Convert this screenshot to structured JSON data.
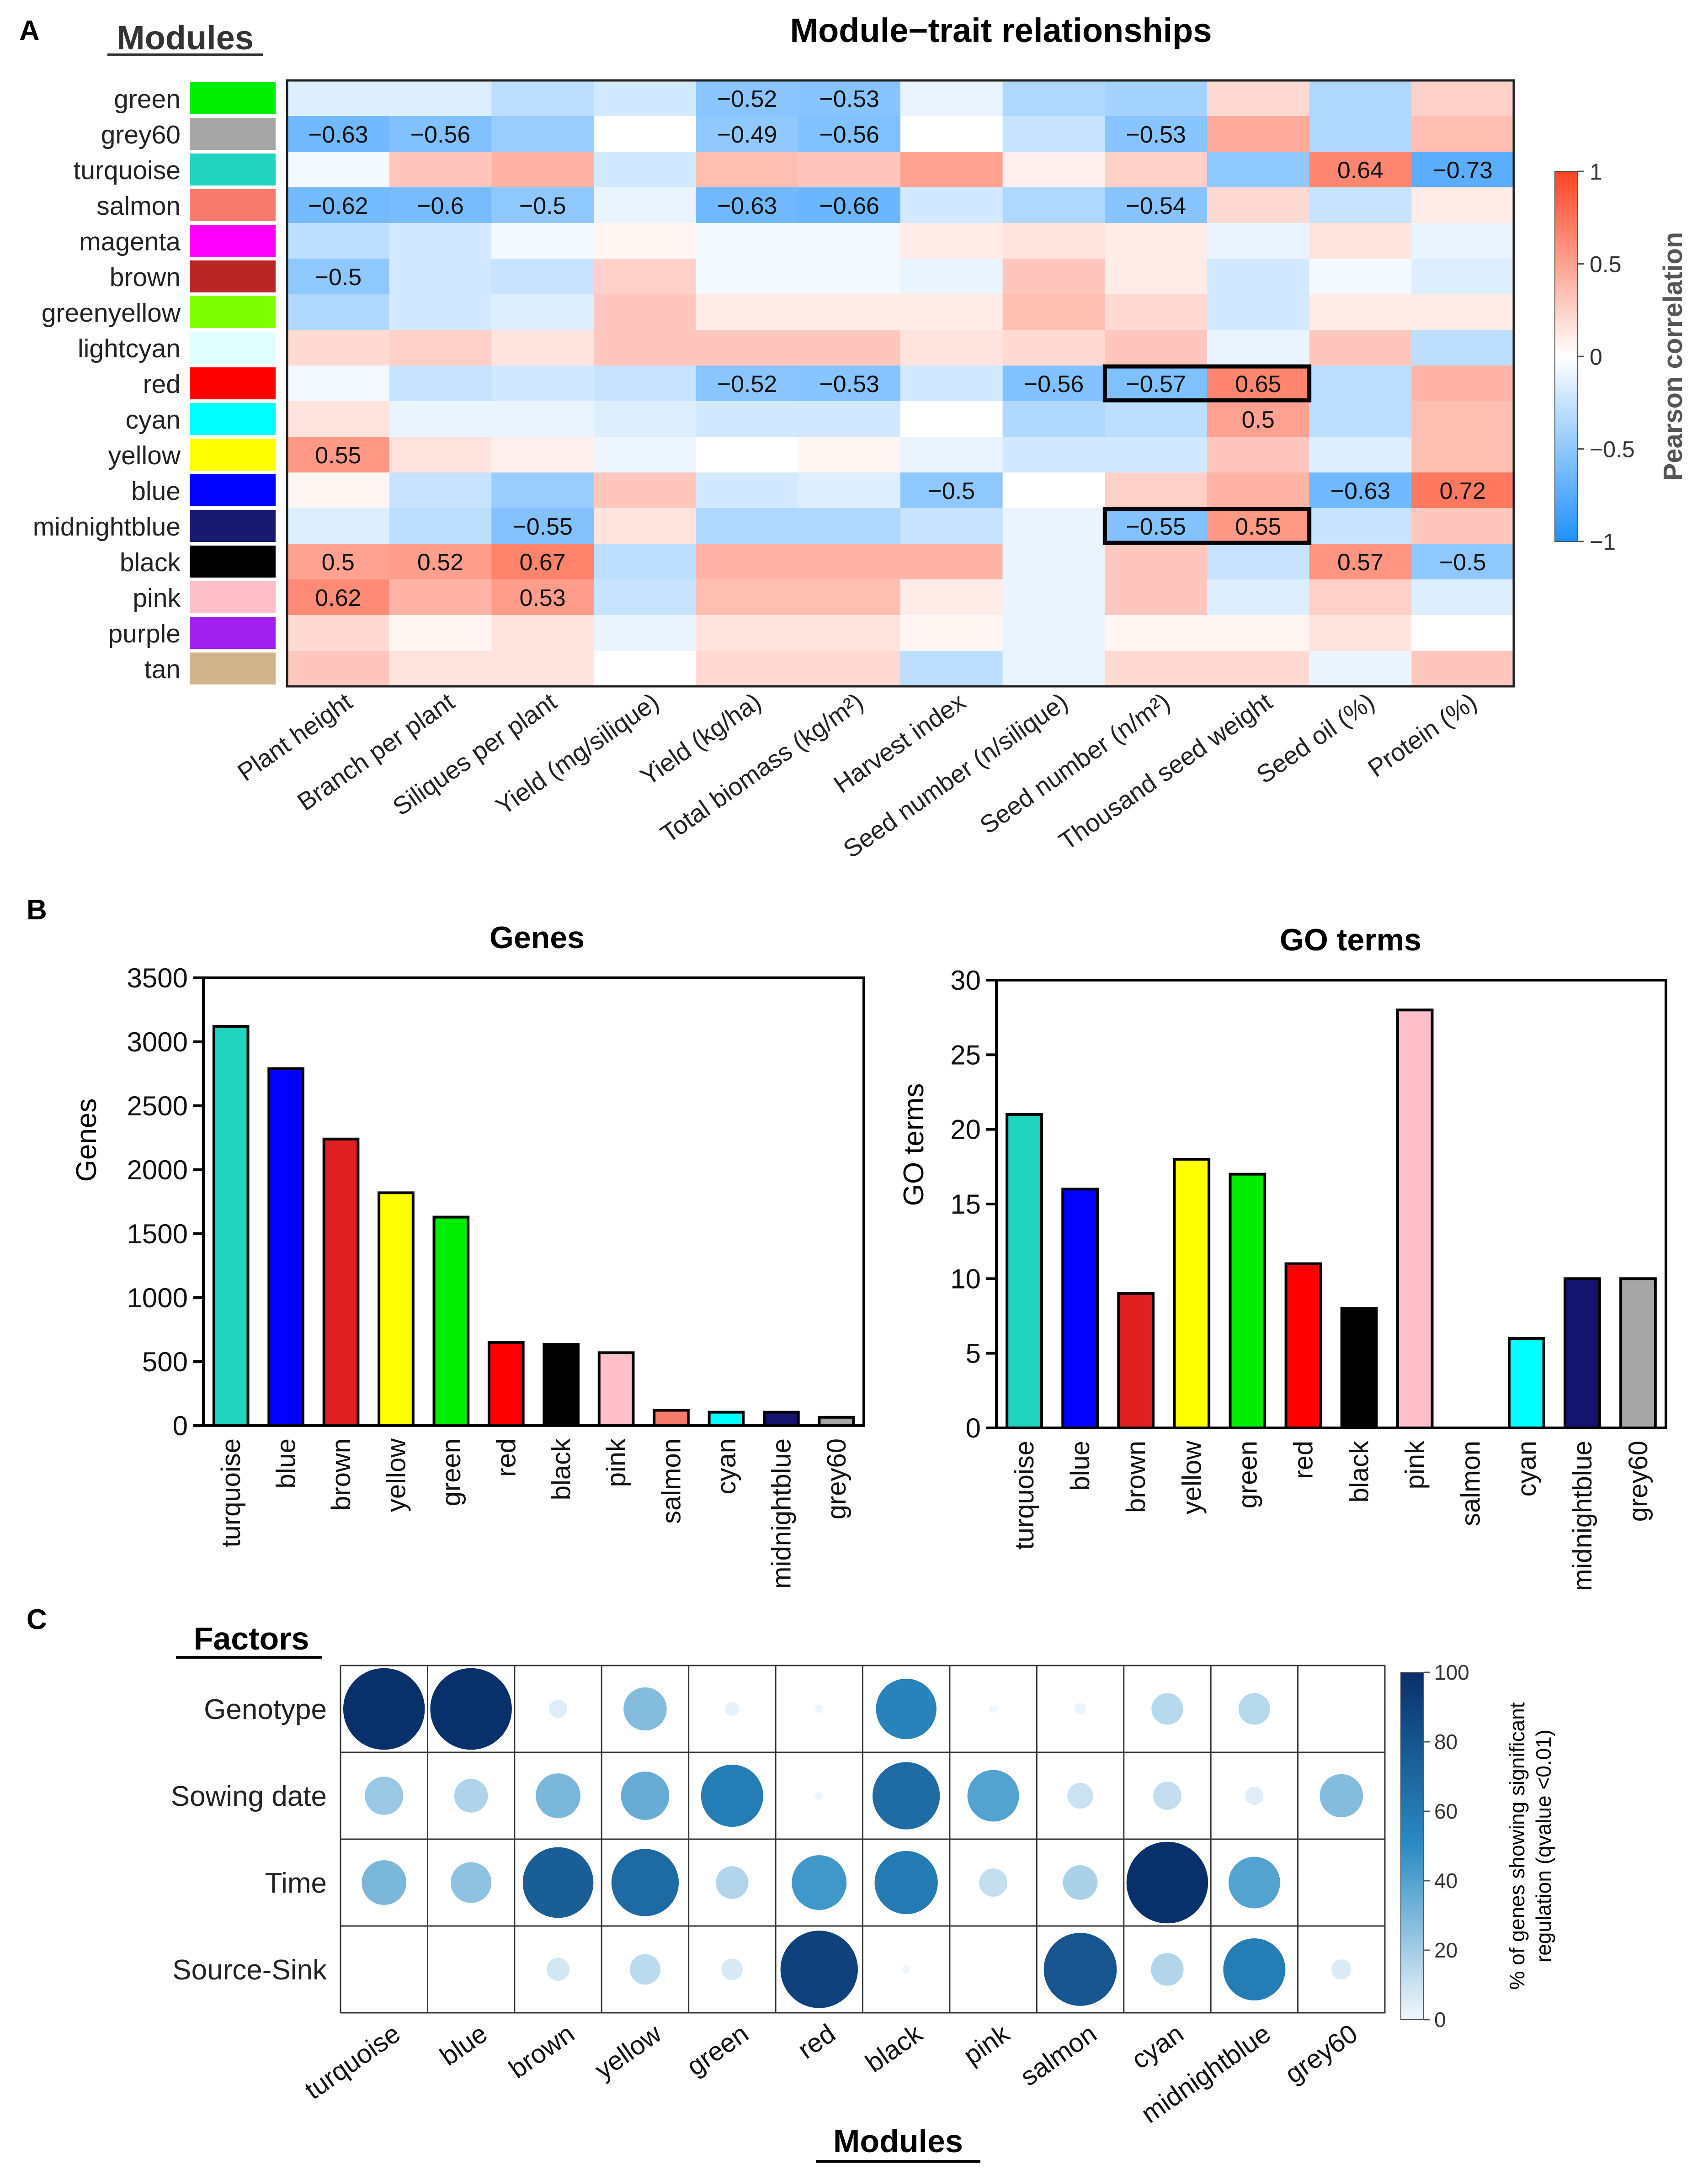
{
  "panels": {
    "a": "A",
    "b": "B",
    "c": "C"
  },
  "heatmap": {
    "title": "Module−trait relationships",
    "row_header": "Modules",
    "modules": [
      {
        "name": "green",
        "color": "#00ee00"
      },
      {
        "name": "grey60",
        "color": "#a6a6a6"
      },
      {
        "name": "turquoise",
        "color": "#20d4c0"
      },
      {
        "name": "salmon",
        "color": "#f87a6c"
      },
      {
        "name": "magenta",
        "color": "#ff00ff"
      },
      {
        "name": "brown",
        "color": "#b82626"
      },
      {
        "name": "greenyellow",
        "color": "#80ff00"
      },
      {
        "name": "lightcyan",
        "color": "#e0ffff"
      },
      {
        "name": "red",
        "color": "#ff0000"
      },
      {
        "name": "cyan",
        "color": "#00ffff"
      },
      {
        "name": "yellow",
        "color": "#ffff00"
      },
      {
        "name": "blue",
        "color": "#0000ff"
      },
      {
        "name": "midnightblue",
        "color": "#191970"
      },
      {
        "name": "black",
        "color": "#000000"
      },
      {
        "name": "pink",
        "color": "#ffc0cb"
      },
      {
        "name": "purple",
        "color": "#a020f0"
      },
      {
        "name": "tan",
        "color": "#d2b48c"
      }
    ],
    "traits": [
      "Plant height",
      "Branch per plant",
      "Siliques per plant",
      "Yield (mg/silique)",
      "Yield (kg/ha)",
      "Total biomass (kg/m²)",
      "Harvest index",
      "Seed number (n/silique)",
      "Seed number (n/m²)",
      "Thousand seed weight",
      "Seed oil (%)",
      "Protein (%)"
    ],
    "values": [
      [
        -0.15,
        -0.15,
        -0.3,
        -0.2,
        -0.52,
        -0.53,
        -0.1,
        -0.35,
        -0.4,
        0.2,
        -0.35,
        0.25
      ],
      [
        -0.63,
        -0.56,
        -0.45,
        0,
        -0.49,
        -0.56,
        0,
        -0.25,
        -0.53,
        0.45,
        -0.35,
        0.35
      ],
      [
        -0.05,
        0.3,
        0.4,
        -0.2,
        0.35,
        0.3,
        0.5,
        0.08,
        0.25,
        -0.5,
        0.64,
        -0.73
      ],
      [
        -0.62,
        -0.6,
        -0.5,
        -0.1,
        -0.63,
        -0.66,
        -0.2,
        -0.35,
        -0.54,
        0.2,
        -0.25,
        0.1
      ],
      [
        -0.3,
        -0.2,
        -0.05,
        0.05,
        -0.05,
        -0.05,
        0.1,
        0.15,
        0.1,
        -0.1,
        0.15,
        -0.1
      ],
      [
        -0.5,
        -0.2,
        -0.25,
        0.25,
        -0.05,
        -0.05,
        -0.1,
        0.3,
        0.1,
        -0.2,
        -0.05,
        -0.15
      ],
      [
        -0.35,
        -0.2,
        -0.15,
        0.3,
        0.1,
        0.1,
        0.1,
        0.35,
        0.2,
        -0.2,
        0.1,
        0.1
      ],
      [
        0.2,
        0.25,
        0.15,
        0.3,
        0.3,
        0.3,
        0.15,
        0.2,
        0.3,
        -0.1,
        0.3,
        -0.3
      ],
      [
        -0.05,
        -0.25,
        -0.2,
        -0.25,
        -0.52,
        -0.53,
        -0.2,
        -0.56,
        -0.57,
        0.65,
        -0.3,
        0.4
      ],
      [
        0.15,
        -0.1,
        -0.1,
        -0.15,
        -0.2,
        -0.2,
        0,
        -0.35,
        -0.3,
        0.5,
        -0.3,
        0.35
      ],
      [
        0.55,
        0.15,
        0.08,
        -0.08,
        0,
        0.05,
        -0.1,
        -0.2,
        -0.2,
        0.3,
        -0.15,
        0.35
      ],
      [
        0.05,
        -0.25,
        -0.45,
        0.3,
        -0.2,
        -0.15,
        -0.5,
        0,
        0.25,
        0.4,
        -0.63,
        0.72
      ],
      [
        -0.15,
        -0.3,
        -0.55,
        0.15,
        -0.35,
        -0.35,
        -0.25,
        -0.1,
        -0.55,
        0.55,
        -0.25,
        0.3
      ],
      [
        0.5,
        0.52,
        0.67,
        -0.3,
        0.4,
        0.4,
        0.4,
        -0.1,
        0.3,
        -0.25,
        0.57,
        -0.5
      ],
      [
        0.62,
        0.4,
        0.53,
        -0.25,
        0.35,
        0.35,
        0.1,
        -0.1,
        0.3,
        -0.15,
        0.25,
        -0.15
      ],
      [
        0.2,
        0.05,
        0.15,
        -0.1,
        0.15,
        0.15,
        0.05,
        -0.1,
        0.05,
        0.05,
        0.15,
        0
      ],
      [
        0.3,
        0.15,
        0.15,
        0,
        0.2,
        0.2,
        -0.3,
        -0.1,
        0.2,
        0.2,
        -0.1,
        0.3
      ]
    ],
    "labels": [
      [
        null,
        null,
        null,
        null,
        "−0.52",
        "−0.53",
        null,
        null,
        null,
        null,
        null,
        null
      ],
      [
        "−0.63",
        "−0.56",
        null,
        null,
        "−0.49",
        "−0.56",
        null,
        null,
        "−0.53",
        null,
        null,
        null
      ],
      [
        null,
        null,
        null,
        null,
        null,
        null,
        null,
        null,
        null,
        null,
        "0.64",
        "−0.73"
      ],
      [
        "−0.62",
        "−0.6",
        "−0.5",
        null,
        "−0.63",
        "−0.66",
        null,
        null,
        "−0.54",
        null,
        null,
        null
      ],
      [
        null,
        null,
        null,
        null,
        null,
        null,
        null,
        null,
        null,
        null,
        null,
        null
      ],
      [
        "−0.5",
        null,
        null,
        null,
        null,
        null,
        null,
        null,
        null,
        null,
        null,
        null
      ],
      [
        null,
        null,
        null,
        null,
        null,
        null,
        null,
        null,
        null,
        null,
        null,
        null
      ],
      [
        null,
        null,
        null,
        null,
        null,
        null,
        null,
        null,
        null,
        null,
        null,
        null
      ],
      [
        null,
        null,
        null,
        null,
        "−0.52",
        "−0.53",
        null,
        "−0.56",
        "−0.57",
        "0.65",
        null,
        null
      ],
      [
        null,
        null,
        null,
        null,
        null,
        null,
        null,
        null,
        null,
        "0.5",
        null,
        null
      ],
      [
        "0.55",
        null,
        null,
        null,
        null,
        null,
        null,
        null,
        null,
        null,
        null,
        null
      ],
      [
        null,
        null,
        null,
        null,
        null,
        null,
        "−0.5",
        null,
        null,
        null,
        "−0.63",
        "0.72"
      ],
      [
        null,
        null,
        "−0.55",
        null,
        null,
        null,
        null,
        null,
        "−0.55",
        "0.55",
        null,
        null
      ],
      [
        "0.5",
        "0.52",
        "0.67",
        null,
        null,
        null,
        null,
        null,
        null,
        null,
        "0.57",
        "−0.5"
      ],
      [
        "0.62",
        null,
        "0.53",
        null,
        null,
        null,
        null,
        null,
        null,
        null,
        null,
        null
      ],
      [
        null,
        null,
        null,
        null,
        null,
        null,
        null,
        null,
        null,
        null,
        null,
        null
      ],
      [
        null,
        null,
        null,
        null,
        null,
        null,
        null,
        null,
        null,
        null,
        null,
        null
      ]
    ],
    "highlight_boxes": [
      {
        "row": "red",
        "traits": [
          "Seed number (n/m²)",
          "Thousand seed weight"
        ]
      },
      {
        "row": "midnightblue",
        "traits": [
          "Seed number (n/m²)",
          "Thousand seed weight"
        ]
      }
    ],
    "colorbar": {
      "label": "Pearson correlation",
      "range": [
        -1,
        1
      ],
      "ticks": [
        "1",
        "0.5",
        "0",
        "−0.5",
        "−1"
      ],
      "tick_values": [
        1,
        0.5,
        0,
        -0.5,
        -1
      ],
      "colors": {
        "neg": "#1e90ff",
        "mid": "#ffffff",
        "pos": "#ff4422"
      }
    }
  },
  "chart_data": [
    {
      "type": "heatmap",
      "title": "Module−trait relationships",
      "ylabel": "Modules",
      "rows": [
        "green",
        "grey60",
        "turquoise",
        "salmon",
        "magenta",
        "brown",
        "greenyellow",
        "lightcyan",
        "red",
        "cyan",
        "yellow",
        "blue",
        "midnightblue",
        "black",
        "pink",
        "purple",
        "tan"
      ],
      "columns": [
        "Plant height",
        "Branch per plant",
        "Siliques per plant",
        "Yield (mg/silique)",
        "Yield (kg/ha)",
        "Total biomass (kg/m²)",
        "Harvest index",
        "Seed number (n/silique)",
        "Seed number (n/m²)",
        "Thousand seed weight",
        "Seed oil (%)",
        "Protein (%)"
      ],
      "zlim": [
        -1,
        1
      ]
    },
    {
      "type": "bar",
      "title": "Genes",
      "ylabel": "Genes",
      "xlabel": "",
      "ylim": [
        0,
        3500
      ],
      "yticks": [
        0,
        500,
        1000,
        1500,
        2000,
        2500,
        3000,
        3500
      ],
      "categories": [
        "turquoise",
        "blue",
        "brown",
        "yellow",
        "green",
        "red",
        "black",
        "pink",
        "salmon",
        "cyan",
        "midnightblue",
        "grey60"
      ],
      "values": [
        3120,
        2790,
        2240,
        1820,
        1630,
        650,
        635,
        570,
        120,
        105,
        105,
        65
      ],
      "colors": [
        "#20d4c0",
        "#0000ff",
        "#e02020",
        "#ffff00",
        "#00ee00",
        "#ff0000",
        "#000000",
        "#ffc0cb",
        "#f87a6c",
        "#00ffff",
        "#14146e",
        "#a6a6a6"
      ]
    },
    {
      "type": "bar",
      "title": "GO terms",
      "ylabel": "GO terms",
      "xlabel": "",
      "ylim": [
        0,
        30
      ],
      "yticks": [
        0,
        5,
        10,
        15,
        20,
        25,
        30
      ],
      "categories": [
        "turquoise",
        "blue",
        "brown",
        "yellow",
        "green",
        "red",
        "black",
        "pink",
        "salmon",
        "cyan",
        "midnightblue",
        "grey60"
      ],
      "values": [
        21,
        16,
        9,
        18,
        17,
        11,
        8,
        28,
        0,
        6,
        10,
        10
      ],
      "colors": [
        "#20d4c0",
        "#0000ff",
        "#e02020",
        "#ffff00",
        "#00ee00",
        "#ff0000",
        "#000000",
        "#ffc0cb",
        "#f87a6c",
        "#00ffff",
        "#14146e",
        "#a6a6a6"
      ]
    },
    {
      "type": "scatter",
      "title": "",
      "row_header": "Factors",
      "xlabel": "Modules",
      "factors": [
        "Genotype",
        "Sowing date",
        "Time",
        "Source-Sink"
      ],
      "modules": [
        "turquoise",
        "blue",
        "brown",
        "yellow",
        "green",
        "red",
        "black",
        "pink",
        "salmon",
        "cyan",
        "midnightblue",
        "grey60"
      ],
      "values": [
        [
          100,
          100,
          5,
          28,
          3,
          1,
          55,
          1,
          2,
          15,
          15,
          0
        ],
        [
          22,
          17,
          30,
          35,
          58,
          1,
          68,
          40,
          10,
          12,
          5,
          28
        ],
        [
          30,
          25,
          75,
          68,
          16,
          45,
          60,
          12,
          18,
          100,
          40,
          0
        ],
        [
          0,
          0,
          8,
          14,
          7,
          90,
          1,
          0,
          80,
          16,
          58,
          6
        ]
      ],
      "colorbar": {
        "label": "% of genes showing significant regulation (qvalue <0.01)",
        "range": [
          0,
          100
        ],
        "ticks": [
          "100",
          "80",
          "60",
          "40",
          "20",
          "0"
        ],
        "tick_values": [
          100,
          80,
          60,
          40,
          20,
          0
        ],
        "colors": {
          "low": "#f2f8fd",
          "high": "#08306b"
        }
      }
    }
  ]
}
